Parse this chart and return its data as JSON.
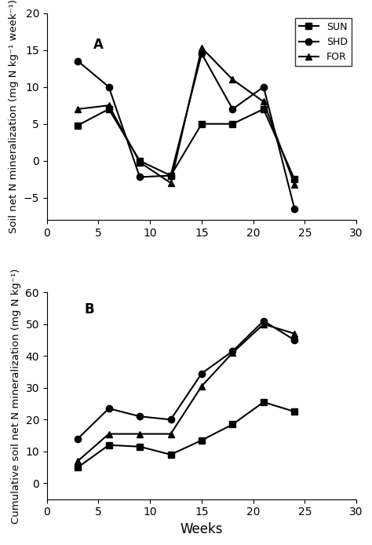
{
  "weeks": [
    3,
    6,
    9,
    12,
    15,
    18,
    21,
    24
  ],
  "panel_A": {
    "SUN": [
      4.8,
      7.0,
      0.0,
      -2.0,
      5.0,
      5.0,
      7.0,
      -2.5
    ],
    "SHD": [
      13.5,
      10.0,
      -2.2,
      -2.0,
      14.5,
      7.0,
      10.0,
      -6.5
    ],
    "FOR": [
      7.0,
      7.5,
      -0.2,
      -3.0,
      15.3,
      11.0,
      8.0,
      -3.2
    ],
    "ylabel": "Soil net N mineralization (mg N kg⁻¹ week⁻¹)",
    "ylim": [
      -8,
      20
    ],
    "yticks": [
      -5,
      0,
      5,
      10,
      15,
      20
    ],
    "label": "A"
  },
  "panel_B": {
    "SUN": [
      5.0,
      12.0,
      11.5,
      9.0,
      13.5,
      18.5,
      25.5,
      22.5
    ],
    "SHD": [
      14.0,
      23.5,
      21.0,
      20.0,
      34.5,
      41.5,
      51.0,
      45.0
    ],
    "FOR": [
      7.0,
      15.5,
      15.5,
      15.5,
      30.5,
      41.0,
      50.0,
      47.0
    ],
    "ylabel": "Cumulative soil net N mineralization (mg N kg⁻¹)",
    "ylim": [
      -5,
      60
    ],
    "yticks": [
      0,
      10,
      20,
      30,
      40,
      50,
      60
    ],
    "label": "B"
  },
  "xlabel": "Weeks",
  "xlim": [
    0,
    30
  ],
  "xticks": [
    0,
    5,
    10,
    15,
    20,
    25,
    30
  ],
  "line_color": "#000000",
  "markers": {
    "SUN": "s",
    "SHD": "o",
    "FOR": "^"
  },
  "markersize": 6,
  "linewidth": 1.5,
  "legend_fontsize": 9,
  "label_fontsize": 12,
  "tick_fontsize": 10,
  "ylabel_fontsize": 9.5
}
